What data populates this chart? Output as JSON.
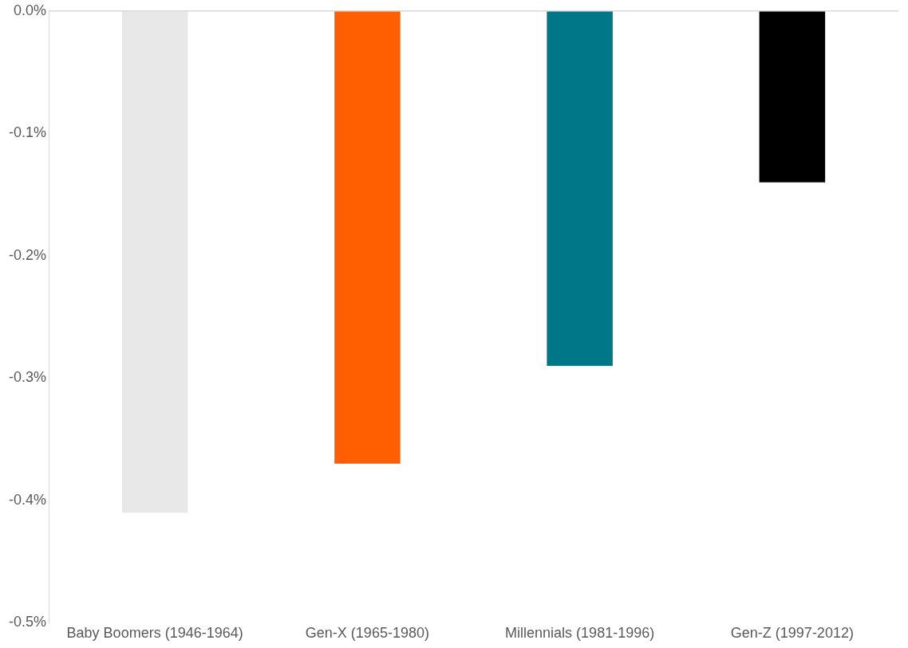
{
  "chart_data": {
    "type": "bar",
    "categories": [
      "Baby Boomers (1946-1964)",
      "Gen-X (1965-1980)",
      "Millennials (1981-1996)",
      "Gen-Z (1997-2012)"
    ],
    "values": [
      -0.41,
      -0.37,
      -0.29,
      -0.14
    ],
    "colors": [
      "#e8e8e8",
      "#ff5f00",
      "#007788",
      "#000000"
    ],
    "ylim": [
      -0.5,
      0
    ],
    "yticks": [
      {
        "value": 0,
        "label": "0.0%"
      },
      {
        "value": -0.1,
        "label": "-0.1%"
      },
      {
        "value": -0.2,
        "label": "-0.2%"
      },
      {
        "value": -0.3,
        "label": "-0.3%"
      },
      {
        "value": -0.4,
        "label": "-0.4%"
      },
      {
        "value": -0.5,
        "label": "-0.5%"
      }
    ],
    "grid": false,
    "legend": false
  }
}
